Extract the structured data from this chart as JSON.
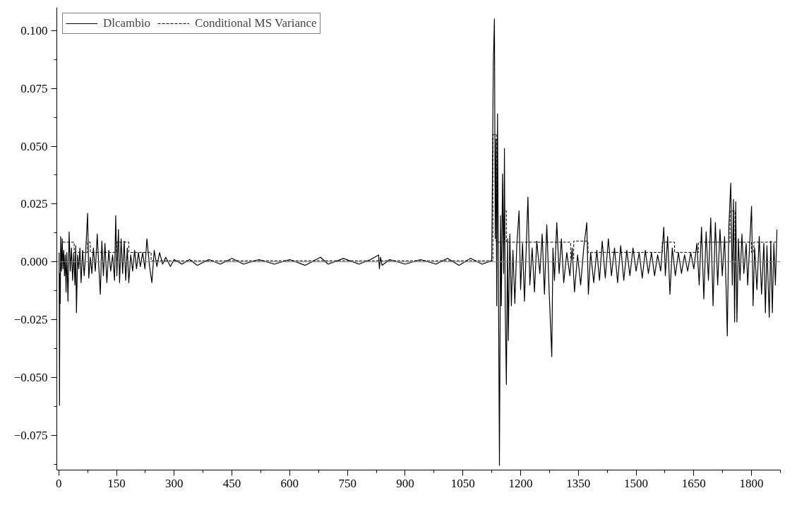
{
  "chart_data": {
    "type": "line",
    "xlim": [
      -5,
      1875
    ],
    "ylim": [
      -0.09,
      0.11
    ],
    "xticks": [
      0,
      150,
      300,
      450,
      600,
      750,
      900,
      1050,
      1200,
      1350,
      1500,
      1650,
      1800
    ],
    "yticks": [
      {
        "value": -0.075,
        "label": "−0.075"
      },
      {
        "value": -0.05,
        "label": "−0.050"
      },
      {
        "value": -0.025,
        "label": "−0.025"
      },
      {
        "value": 0,
        "label": "0.000"
      },
      {
        "value": 0.025,
        "label": "0.025"
      },
      {
        "value": 0.05,
        "label": "0.050"
      },
      {
        "value": 0.075,
        "label": "0.075"
      },
      {
        "value": 0.1,
        "label": "0.100"
      }
    ],
    "grid": false,
    "legend": "top left",
    "line_style": "solid",
    "ref_lines": [
      {
        "axis": "y",
        "value": 0,
        "color": "#808080"
      }
    ],
    "series": [
      {
        "name": "Dlcambio",
        "color": "#000000",
        "x": [
          1,
          2,
          3,
          4,
          5,
          7,
          9,
          11,
          13,
          15,
          17,
          19,
          21,
          24,
          27,
          30,
          33,
          36,
          39,
          42,
          44,
          46,
          49,
          52,
          55,
          58,
          62,
          66,
          70,
          75,
          78,
          82,
          86,
          90,
          95,
          100,
          104,
          108,
          112,
          116,
          120,
          125,
          130,
          135,
          140,
          145,
          148,
          151,
          155,
          158,
          162,
          166,
          170,
          174,
          178,
          182,
          187,
          192,
          197,
          202,
          207,
          212,
          218,
          224,
          229,
          236,
          242,
          248,
          255,
          262,
          270,
          278,
          290,
          300,
          320,
          340,
          360,
          390,
          420,
          450,
          480,
          520,
          560,
          600,
          640,
          680,
          700,
          740,
          780,
          810,
          831,
          833,
          836,
          840,
          860,
          900,
          940,
          980,
          1010,
          1040,
          1070,
          1100,
          1125,
          1129,
          1132,
          1134,
          1136,
          1138,
          1140,
          1145,
          1148,
          1150,
          1153,
          1156,
          1158,
          1160,
          1163,
          1166,
          1168,
          1172,
          1176,
          1180,
          1185,
          1190,
          1196,
          1200,
          1205,
          1210,
          1219,
          1224,
          1230,
          1236,
          1242,
          1250,
          1256,
          1262,
          1268,
          1274,
          1281,
          1284,
          1288,
          1294,
          1300,
          1306,
          1312,
          1320,
          1328,
          1334,
          1340,
          1348,
          1356,
          1364,
          1372,
          1376,
          1382,
          1390,
          1398,
          1405,
          1412,
          1420,
          1428,
          1436,
          1444,
          1452,
          1460,
          1468,
          1476,
          1484,
          1492,
          1500,
          1508,
          1516,
          1524,
          1532,
          1540,
          1548,
          1556,
          1564,
          1572,
          1576,
          1582,
          1588,
          1594,
          1602,
          1610,
          1618,
          1626,
          1634,
          1642,
          1650,
          1658,
          1664,
          1670,
          1676,
          1682,
          1688,
          1694,
          1700,
          1706,
          1712,
          1718,
          1724,
          1730,
          1734,
          1737,
          1741,
          1746,
          1750,
          1753,
          1756,
          1759,
          1762,
          1766,
          1770,
          1775,
          1780,
          1786,
          1790,
          1800,
          1804,
          1808,
          1814,
          1820,
          1826,
          1832,
          1836,
          1840,
          1846,
          1850,
          1854,
          1858,
          1862,
          1866
        ],
        "values": [
          0.004,
          -0.062,
          -0.005,
          -0.018,
          0.011,
          -0.004,
          0.01,
          -0.003,
          0.005,
          -0.006,
          0.003,
          -0.013,
          0.004,
          -0.017,
          0.013,
          -0.004,
          0.006,
          -0.008,
          0.004,
          -0.01,
          0.007,
          -0.022,
          0.003,
          -0.003,
          0.006,
          -0.009,
          0.005,
          -0.006,
          0.004,
          0.021,
          -0.007,
          0.002,
          -0.005,
          0.006,
          -0.004,
          0.012,
          -0.002,
          -0.014,
          0.009,
          -0.006,
          0.008,
          -0.009,
          0.005,
          -0.004,
          0.003,
          -0.008,
          0.02,
          -0.006,
          0.014,
          -0.009,
          0.01,
          -0.005,
          0.009,
          -0.008,
          0.006,
          -0.009,
          0.003,
          -0.004,
          0.005,
          -0.003,
          0.004,
          -0.002,
          0.004,
          -0.003,
          0.01,
          -0.002,
          -0.009,
          0.005,
          -0.002,
          0.004,
          -0.001,
          0.002,
          -0.002,
          0.001,
          -0.001,
          0.001,
          -0.0015,
          0.001,
          -0.001,
          0.0015,
          -0.001,
          0.001,
          -0.001,
          0.001,
          -0.0015,
          0.002,
          -0.001,
          0.0015,
          -0.001,
          0.001,
          0.003,
          -0.003,
          0.002,
          -0.0015,
          0.001,
          -0.001,
          0.001,
          -0.001,
          0.0015,
          -0.0015,
          0.0015,
          -0.001,
          0.0005,
          0.085,
          0.105,
          0.01,
          0.053,
          -0.019,
          0.064,
          -0.088,
          0.02,
          -0.019,
          0.038,
          -0.005,
          0.049,
          -0.02,
          -0.053,
          0.01,
          -0.034,
          0.012,
          -0.019,
          0.005,
          -0.018,
          0.007,
          0.022,
          -0.012,
          0.008,
          -0.017,
          0.028,
          -0.01,
          0.006,
          -0.013,
          0.009,
          -0.005,
          0.012,
          -0.014,
          0.016,
          -0.012,
          -0.041,
          0.006,
          -0.008,
          0.017,
          -0.005,
          0.01,
          -0.009,
          0.004,
          -0.006,
          0.006,
          -0.013,
          0.003,
          -0.01,
          0.006,
          0.017,
          -0.014,
          0.004,
          -0.009,
          0.005,
          -0.008,
          0.009,
          -0.007,
          0.01,
          -0.006,
          0.006,
          -0.009,
          0.007,
          -0.008,
          0.005,
          -0.006,
          0.006,
          -0.004,
          0.004,
          -0.007,
          0.005,
          -0.005,
          0.004,
          -0.006,
          0.003,
          -0.004,
          0.015,
          -0.006,
          0.011,
          -0.014,
          0.006,
          -0.006,
          0.004,
          -0.005,
          0.003,
          -0.004,
          0.004,
          -0.003,
          0.008,
          -0.01,
          0.015,
          -0.016,
          0.013,
          -0.008,
          0.019,
          -0.019,
          0.017,
          -0.01,
          0.014,
          -0.006,
          0.011,
          -0.012,
          -0.032,
          0.015,
          0.034,
          -0.01,
          0.027,
          -0.026,
          0.026,
          -0.026,
          0.01,
          -0.008,
          0.012,
          -0.005,
          0.008,
          -0.01,
          0.024,
          -0.019,
          0.006,
          -0.012,
          0.011,
          -0.014,
          0.008,
          -0.022,
          0.007,
          -0.024,
          0.009,
          -0.022,
          0.008,
          -0.01,
          0.014
        ]
      },
      {
        "name": "Conditional MS Variance",
        "color": "#000000",
        "type": "step",
        "line_style": "dashed",
        "x": [
          10,
          40,
          75,
          82,
          150,
          182,
          240,
          1128,
          1137,
          1158,
          1163,
          1330,
          1338,
          1344,
          1375,
          1568,
          1600,
          1662,
          1744,
          1757,
          1800,
          1806,
          1866
        ],
        "values": [
          0.0085,
          0.0041,
          0.0085,
          0.0041,
          0.0085,
          0.0041,
          0.0005,
          0.055,
          0.0085,
          0.022,
          0.0085,
          0.0015,
          0.009,
          0.009,
          0.0041,
          0.0085,
          0.0041,
          0.0085,
          0.022,
          0.0085,
          0.0041,
          0.0085,
          0.0085
        ]
      }
    ]
  }
}
